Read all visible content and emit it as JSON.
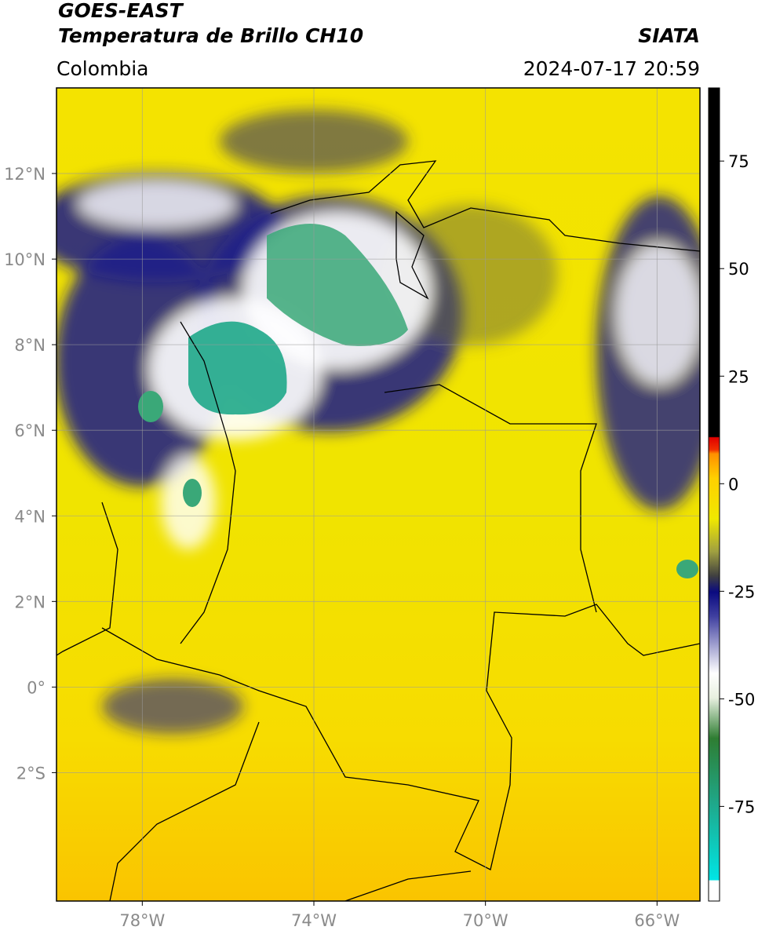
{
  "header": {
    "title": "GOES-EAST",
    "subtitle": "Temperatura de Brillo CH10",
    "source": "SIATA",
    "region": "Colombia",
    "timestamp": "2024-07-17 20:59"
  },
  "map": {
    "xlim": [
      -80,
      -65
    ],
    "ylim": [
      -5,
      14
    ],
    "grid": true,
    "xticks": [
      {
        "value": -78,
        "label": "78°W"
      },
      {
        "value": -74,
        "label": "74°W"
      },
      {
        "value": -70,
        "label": "70°W"
      },
      {
        "value": -66,
        "label": "66°W"
      }
    ],
    "yticks": [
      {
        "value": 12,
        "label": "12°N"
      },
      {
        "value": 10,
        "label": "10°N"
      },
      {
        "value": 8,
        "label": "8°N"
      },
      {
        "value": 6,
        "label": "6°N"
      },
      {
        "value": 4,
        "label": "4°N"
      },
      {
        "value": 2,
        "label": "2°N"
      },
      {
        "value": 0,
        "label": "0°"
      },
      {
        "value": -2,
        "label": "2°S"
      }
    ]
  },
  "colorbar": {
    "lim": [
      -97,
      92
    ],
    "ticks": [
      75,
      50,
      25,
      0,
      -25,
      -50,
      -75
    ]
  }
}
